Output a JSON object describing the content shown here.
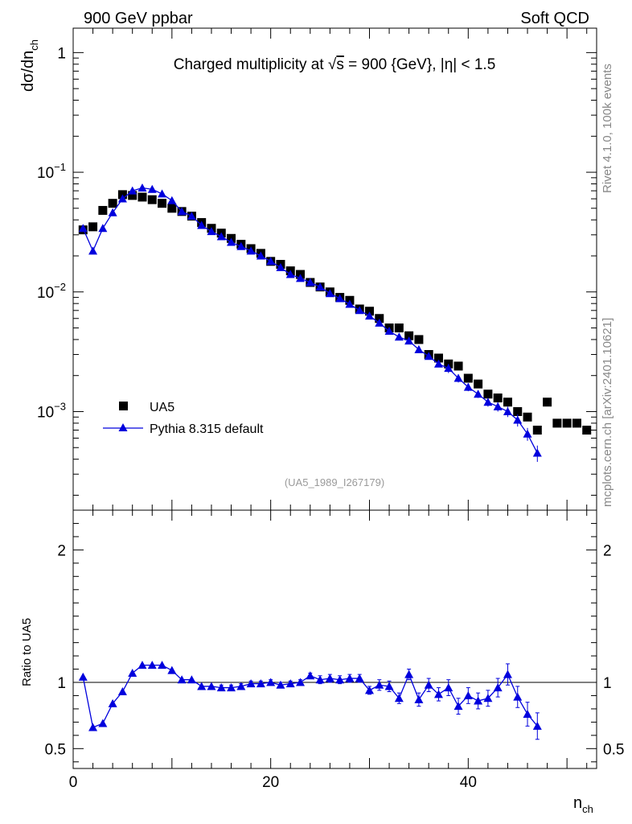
{
  "header": {
    "left": "900 GeV ppbar",
    "right": "Soft QCD"
  },
  "side": {
    "rivet": "Rivet 4.1.0,  100k events",
    "mcplots": "mcplots.cern.ch [arXiv:2401.10621]"
  },
  "watermark": "(UA5_1989_I267179)",
  "colors": {
    "data": "#000000",
    "mc": "#0000dd",
    "axis": "#000000",
    "watermark": "#9a9a9a",
    "side": "#888888"
  },
  "chart_data": [
    {
      "type": "scatter",
      "title": "Charged multiplicity at √s = 900 {GeV}, |η| < 1.5",
      "title_parts": {
        "prefix": "Charged multiplicity at ",
        "root": "√",
        "s": "s",
        "rest": " = 900 {GeV}, |η| < 1.5"
      },
      "ylabel": {
        "main": "dσ/dn",
        "sub": "ch"
      },
      "yscale": "log",
      "ylim": [
        0.00015,
        1.6
      ],
      "xlim": [
        0,
        53
      ],
      "y_ticks": [
        {
          "value": 1,
          "base": "1",
          "exp": ""
        },
        {
          "value": 0.1,
          "base": "10",
          "exp": "−1"
        },
        {
          "value": 0.01,
          "base": "10",
          "exp": "−2"
        },
        {
          "value": 0.001,
          "base": "10",
          "exp": "−3"
        }
      ],
      "legend_position": "bottom-left",
      "series": [
        {
          "name": "UA5",
          "marker": "square",
          "x": [
            1,
            2,
            3,
            4,
            5,
            6,
            7,
            8,
            9,
            10,
            11,
            12,
            13,
            14,
            15,
            16,
            17,
            18,
            19,
            20,
            21,
            22,
            23,
            24,
            25,
            26,
            27,
            28,
            29,
            30,
            31,
            32,
            33,
            34,
            35,
            36,
            37,
            38,
            39,
            40,
            41,
            42,
            43,
            44,
            45,
            46,
            47,
            48,
            49,
            50,
            51,
            52
          ],
          "y": [
            0.033,
            0.035,
            0.048,
            0.055,
            0.065,
            0.064,
            0.062,
            0.059,
            0.055,
            0.05,
            0.047,
            0.043,
            0.038,
            0.034,
            0.031,
            0.028,
            0.025,
            0.023,
            0.021,
            0.018,
            0.017,
            0.015,
            0.014,
            0.012,
            0.011,
            0.01,
            0.009,
            0.0085,
            0.0072,
            0.0069,
            0.006,
            0.005,
            0.005,
            0.0043,
            0.004,
            0.003,
            0.0028,
            0.0025,
            0.0024,
            0.0019,
            0.0017,
            0.0014,
            0.0013,
            0.0012,
            0.001,
            0.0009,
            0.0007,
            0.0012,
            0.0008,
            0.0008,
            0.0008,
            0.0007
          ]
        },
        {
          "name": "Pythia 8.315 default",
          "marker": "triangle",
          "x": [
            1,
            2,
            3,
            4,
            5,
            6,
            7,
            8,
            9,
            10,
            11,
            12,
            13,
            14,
            15,
            16,
            17,
            18,
            19,
            20,
            21,
            22,
            23,
            24,
            25,
            26,
            27,
            28,
            29,
            30,
            31,
            32,
            33,
            34,
            35,
            36,
            37,
            38,
            39,
            40,
            41,
            42,
            43,
            44,
            45,
            46,
            47
          ],
          "y": [
            0.034,
            0.022,
            0.034,
            0.046,
            0.06,
            0.07,
            0.074,
            0.072,
            0.066,
            0.058,
            0.047,
            0.043,
            0.036,
            0.032,
            0.029,
            0.026,
            0.024,
            0.022,
            0.02,
            0.018,
            0.016,
            0.014,
            0.013,
            0.012,
            0.011,
            0.0097,
            0.0088,
            0.0079,
            0.007,
            0.0063,
            0.0055,
            0.0047,
            0.0042,
            0.0039,
            0.0033,
            0.0029,
            0.0025,
            0.0023,
            0.0019,
            0.0016,
            0.0014,
            0.0012,
            0.0011,
            0.001,
            0.00085,
            0.00065,
            0.00045
          ],
          "err": [
            0,
            0,
            0,
            0,
            0,
            0,
            0,
            0,
            0,
            0,
            0,
            0,
            0,
            0,
            0,
            0,
            0,
            0,
            0,
            0,
            0,
            0,
            0,
            0,
            0,
            0,
            0,
            0,
            0,
            0,
            0,
            0,
            0,
            0,
            0,
            0,
            0,
            0.0002,
            0.00015,
            0.00012,
            0.0001,
            0.0001,
            0.0001,
            0.0001,
            0.0001,
            8e-05,
            7e-05
          ]
        }
      ]
    },
    {
      "type": "line",
      "ylabel": "Ratio to UA5",
      "xlabel": {
        "main": "n",
        "sub": "ch"
      },
      "xlim": [
        0,
        53
      ],
      "ylim": [
        0.35,
        2.3
      ],
      "x_ticks": [
        0,
        20,
        40
      ],
      "y_ticks": [
        0.5,
        1,
        2
      ],
      "reference_line": 1,
      "series": [
        {
          "name": "Pythia 8.315 default",
          "x": [
            1,
            2,
            3,
            4,
            5,
            6,
            7,
            8,
            9,
            10,
            11,
            12,
            13,
            14,
            15,
            16,
            17,
            18,
            19,
            20,
            21,
            22,
            23,
            24,
            25,
            26,
            27,
            28,
            29,
            30,
            31,
            32,
            33,
            34,
            35,
            36,
            37,
            38,
            39,
            40,
            41,
            42,
            43,
            44,
            45,
            46,
            47
          ],
          "y": [
            1.04,
            0.66,
            0.69,
            0.84,
            0.93,
            1.07,
            1.13,
            1.13,
            1.13,
            1.09,
            1.02,
            1.02,
            0.97,
            0.97,
            0.96,
            0.96,
            0.97,
            0.99,
            0.99,
            1.0,
            0.98,
            0.99,
            1.0,
            1.05,
            1.02,
            1.03,
            1.02,
            1.03,
            1.03,
            0.94,
            0.98,
            0.97,
            0.88,
            1.06,
            0.87,
            0.98,
            0.91,
            0.96,
            0.82,
            0.9,
            0.86,
            0.88,
            0.96,
            1.06,
            0.89,
            0.76,
            0.67
          ],
          "err": [
            0,
            0,
            0,
            0,
            0,
            0,
            0,
            0,
            0,
            0,
            0,
            0,
            0,
            0,
            0.02,
            0.02,
            0.02,
            0.02,
            0.02,
            0.02,
            0.02,
            0.02,
            0.02,
            0.02,
            0.03,
            0.03,
            0.03,
            0.03,
            0.03,
            0.03,
            0.04,
            0.04,
            0.04,
            0.04,
            0.05,
            0.05,
            0.05,
            0.06,
            0.06,
            0.06,
            0.06,
            0.06,
            0.07,
            0.08,
            0.08,
            0.09,
            0.1
          ]
        }
      ]
    }
  ]
}
